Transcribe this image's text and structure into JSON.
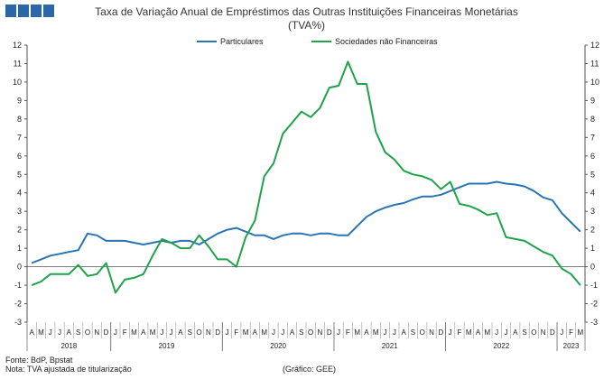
{
  "header": {
    "title_line1": "Taxa de Variação Anual de Empréstimos das Outras Instituições Financeiras Monetárias",
    "title_line2": "(TVA%)"
  },
  "footer": {
    "source": "Fonte: BdP, Bpstat",
    "note": "Nota: TVA ajustada de titularização",
    "credit": "(Gráfico: GEE)"
  },
  "colors": {
    "logo": "#2b66a8",
    "particulares": "#2a74b4",
    "sociedades": "#1fa34a",
    "axis": "#555555"
  },
  "chart_data": {
    "type": "line",
    "ylim": [
      -3,
      12
    ],
    "yticks": [
      -3,
      -2,
      -1,
      0,
      1,
      2,
      3,
      4,
      5,
      6,
      7,
      8,
      9,
      10,
      11,
      12
    ],
    "grid": false,
    "legend_position": "top-center",
    "month_labels": [
      "A",
      "M",
      "J",
      "J",
      "A",
      "S",
      "O",
      "N",
      "D",
      "J",
      "F",
      "M",
      "A",
      "M",
      "J",
      "J",
      "A",
      "S",
      "O",
      "N",
      "D",
      "J",
      "F",
      "M",
      "A",
      "M",
      "J",
      "J",
      "A",
      "S",
      "O",
      "N",
      "D",
      "J",
      "F",
      "M",
      "A",
      "M",
      "J",
      "J",
      "A",
      "S",
      "O",
      "N",
      "D",
      "J",
      "F",
      "M",
      "A",
      "M",
      "J",
      "J",
      "A",
      "S",
      "O",
      "N",
      "D",
      "J",
      "F",
      "M"
    ],
    "years": [
      {
        "label": "2018",
        "start": 0,
        "end": 9
      },
      {
        "label": "2019",
        "start": 9,
        "end": 21
      },
      {
        "label": "2020",
        "start": 21,
        "end": 33
      },
      {
        "label": "2021",
        "start": 33,
        "end": 45
      },
      {
        "label": "2022",
        "start": 45,
        "end": 57
      },
      {
        "label": "2023",
        "start": 57,
        "end": 60
      }
    ],
    "series": [
      {
        "name": "Particulares",
        "values": [
          0.2,
          0.4,
          0.6,
          0.7,
          0.8,
          0.9,
          1.8,
          1.7,
          1.4,
          1.4,
          1.4,
          1.3,
          1.2,
          1.3,
          1.4,
          1.3,
          1.4,
          1.4,
          1.2,
          1.5,
          1.8,
          2.0,
          2.1,
          1.9,
          1.7,
          1.7,
          1.5,
          1.7,
          1.8,
          1.8,
          1.7,
          1.8,
          1.8,
          1.7,
          1.7,
          2.2,
          2.7,
          3.0,
          3.2,
          3.35,
          3.45,
          3.65,
          3.8,
          3.8,
          3.9,
          4.1,
          4.3,
          4.5,
          4.5,
          4.5,
          4.6,
          4.5,
          4.45,
          4.35,
          4.1,
          3.75,
          3.6,
          2.9,
          2.4,
          1.9
        ]
      },
      {
        "name": "Sociedades não Financeiras",
        "values": [
          -1.0,
          -0.8,
          -0.4,
          -0.4,
          -0.4,
          0.1,
          -0.5,
          -0.4,
          0.2,
          -1.4,
          -0.7,
          -0.6,
          -0.4,
          0.6,
          1.5,
          1.3,
          1.0,
          1.0,
          1.7,
          1.1,
          0.4,
          0.4,
          0.0,
          1.6,
          2.5,
          4.9,
          5.6,
          7.2,
          7.8,
          8.4,
          8.1,
          8.6,
          9.7,
          9.8,
          11.1,
          9.9,
          9.9,
          7.3,
          6.2,
          5.8,
          5.2,
          5.0,
          4.9,
          4.7,
          4.2,
          4.6,
          3.4,
          3.3,
          3.1,
          2.8,
          2.9,
          1.6,
          1.5,
          1.4,
          1.1,
          0.8,
          0.6,
          -0.1,
          -0.4,
          -1.0
        ]
      }
    ]
  }
}
